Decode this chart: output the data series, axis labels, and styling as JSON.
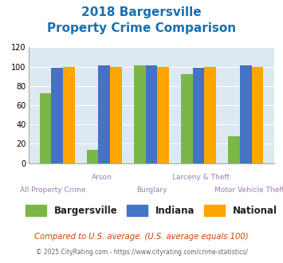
{
  "title_line1": "2018 Bargersville",
  "title_line2": "Property Crime Comparison",
  "categories": [
    "All Property Crime",
    "Arson",
    "Burglary",
    "Larceny & Theft",
    "Motor Vehicle Theft"
  ],
  "x_labels_top": [
    "",
    "Arson",
    "",
    "Larceny & Theft",
    ""
  ],
  "x_labels_bottom": [
    "All Property Crime",
    "",
    "Burglary",
    "",
    "Motor Vehicle Theft"
  ],
  "bargersville": [
    72,
    14,
    101,
    92,
    28
  ],
  "indiana": [
    99,
    101,
    101,
    99,
    101
  ],
  "national": [
    100,
    100,
    100,
    100,
    100
  ],
  "bar_colors": {
    "bargersville": "#7ab648",
    "indiana": "#4472c4",
    "national": "#ffa500"
  },
  "ylim": [
    0,
    120
  ],
  "yticks": [
    0,
    20,
    40,
    60,
    80,
    100,
    120
  ],
  "title_color": "#1a6faf",
  "xlabel_color": "#9b7fad",
  "legend_labels": [
    "Bargersville",
    "Indiana",
    "National"
  ],
  "footnote1": "Compared to U.S. average. (U.S. average equals 100)",
  "footnote2": "© 2025 CityRating.com - https://www.cityrating.com/crime-statistics/",
  "footnote1_color": "#cc4400",
  "footnote2_color": "#666666",
  "bg_color": "#dce9f0",
  "bar_width": 0.25
}
